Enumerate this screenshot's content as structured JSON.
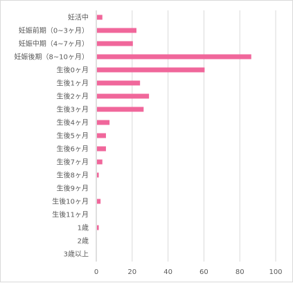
{
  "chart_data": {
    "type": "bar",
    "orientation": "horizontal",
    "categories": [
      "妊活中",
      "妊娠前期（0~3ヶ月）",
      "妊娠中期（4~7ヶ月）",
      "妊娠後期（8~10ヶ月）",
      "生後0ヶ月",
      "生後1ヶ月",
      "生後2ヶ月",
      "生後3ヶ月",
      "生後4ヶ月",
      "生後5ヶ月",
      "生後6ヶ月",
      "生後7ヶ月",
      "生後8ヶ月",
      "生後9ヶ月",
      "生後10ヶ月",
      "生後11ヶ月",
      "1歳",
      "2歳",
      "3歳以上"
    ],
    "values": [
      3,
      22,
      20,
      86,
      60,
      24,
      29,
      26,
      7,
      5,
      5,
      3,
      1,
      0,
      2,
      0,
      1,
      0,
      0
    ],
    "xlim": [
      0,
      100
    ],
    "xticks": [
      0,
      20,
      40,
      60,
      80,
      100
    ],
    "title": "",
    "xlabel": "",
    "ylabel": "",
    "grid": true,
    "legend": "none",
    "bar_color": "#f0679b",
    "grid_color": "#d9d9d9"
  }
}
